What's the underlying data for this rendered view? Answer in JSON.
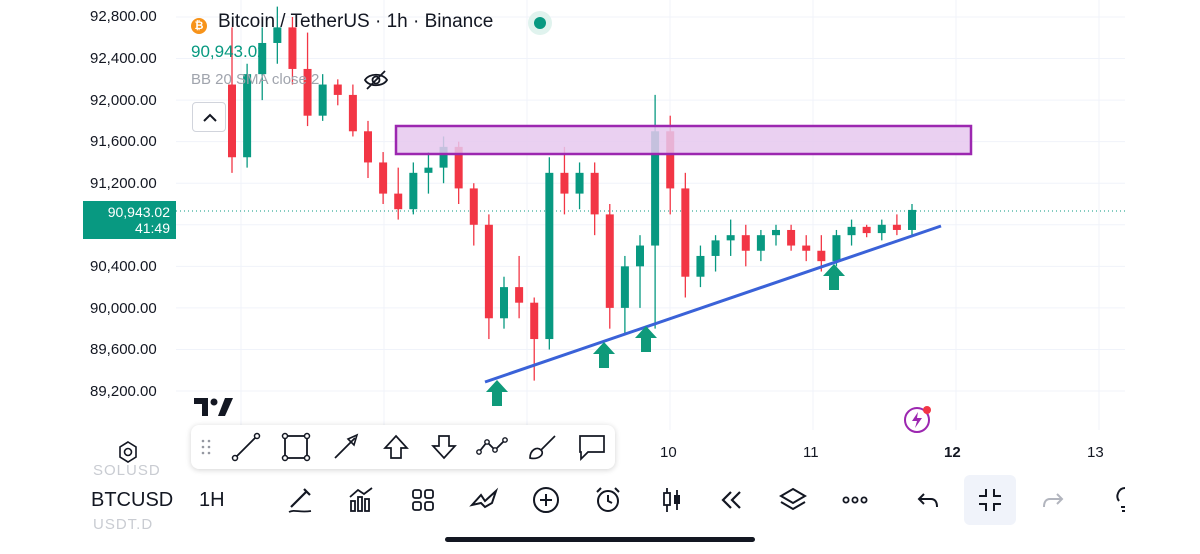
{
  "header": {
    "title": "Bitcoin / TetherUS · 1h · Binance",
    "symbol_badge": "₿",
    "last_price": "90,943.02",
    "indicator_label": "BB 20 SMA close 2"
  },
  "price_tag": {
    "price": "90,943.02",
    "countdown": "41:49"
  },
  "y_axis": {
    "ticks": [
      "92,800.00",
      "92,400.00",
      "92,000.00",
      "91,600.00",
      "91,200.00",
      "90,400.00",
      "90,000.00",
      "89,600.00",
      "89,200.00"
    ]
  },
  "x_axis": {
    "ticks": [
      {
        "label": "10",
        "bold": false
      },
      {
        "label": "11",
        "bold": false
      },
      {
        "label": "12",
        "bold": true
      },
      {
        "label": "13",
        "bold": false
      }
    ]
  },
  "colors": {
    "up": "#089981",
    "down": "#f23645",
    "zone_fill": "#e6c8ee",
    "zone_border": "#9c27b0",
    "trendline": "#3a62d8",
    "arrow": "#0f9a7a"
  },
  "drawing_toolbar": {
    "tools": [
      "trend-line-tool",
      "rectangle-tool",
      "arrow-tool",
      "arrow-mark-up-tool",
      "arrow-mark-down-tool",
      "path-tool",
      "brush-tool",
      "callout-tool"
    ]
  },
  "bottom_bar": {
    "symbol": "BTCUSD",
    "symbol_above": "SOLUSD",
    "symbol_below": "USDT.D",
    "interval": "1H",
    "tools": [
      "draw-icon",
      "indicators-icon",
      "layouts-icon",
      "templates-icon",
      "add-icon",
      "alert-icon",
      "candles-icon",
      "replay-icon",
      "layers-icon",
      "more-icon",
      "undo-icon",
      "fullscreen-exit-icon",
      "redo-icon",
      "idea-icon"
    ]
  },
  "chart_data": {
    "type": "candlestick",
    "x_ticks": [
      "10",
      "11",
      "12",
      "13"
    ],
    "y_ticks": [
      92800,
      92400,
      92000,
      91600,
      91200,
      90400,
      90000,
      89600,
      89200
    ],
    "last_price": 90943.02,
    "resistance_zone": [
      91500,
      91780
    ],
    "support_trendline": "ascending",
    "candles_ohlc_approx": [
      [
        92150,
        92700,
        91300,
        91450
      ],
      [
        91450,
        92350,
        91350,
        92250
      ],
      [
        92250,
        92700,
        92000,
        92550
      ],
      [
        92550,
        92900,
        92350,
        92700
      ],
      [
        92700,
        92800,
        92150,
        92300
      ],
      [
        92300,
        92650,
        91750,
        91850
      ],
      [
        91850,
        92250,
        91800,
        92150
      ],
      [
        92150,
        92200,
        91950,
        92050
      ],
      [
        92050,
        92150,
        91650,
        91700
      ],
      [
        91700,
        91800,
        91250,
        91400
      ],
      [
        91400,
        91500,
        91000,
        91100
      ],
      [
        91100,
        91350,
        90850,
        90950
      ],
      [
        90950,
        91400,
        90900,
        91300
      ],
      [
        91300,
        91500,
        91100,
        91350
      ],
      [
        91350,
        91650,
        91200,
        91550
      ],
      [
        91550,
        91600,
        91000,
        91150
      ],
      [
        91150,
        91200,
        90600,
        90800
      ],
      [
        90800,
        90900,
        89700,
        89900
      ],
      [
        89900,
        90300,
        89800,
        90200
      ],
      [
        90200,
        90500,
        89900,
        90050
      ],
      [
        90050,
        90100,
        89300,
        89700
      ],
      [
        89700,
        91450,
        89600,
        91300
      ],
      [
        91300,
        91550,
        90900,
        91100
      ],
      [
        91100,
        91400,
        90950,
        91300
      ],
      [
        91300,
        91400,
        90700,
        90900
      ],
      [
        90900,
        91000,
        89800,
        90000
      ],
      [
        90000,
        90500,
        89750,
        90400
      ],
      [
        90400,
        90700,
        90000,
        90600
      ],
      [
        90600,
        92050,
        89800,
        91700
      ],
      [
        91700,
        91850,
        90900,
        91150
      ],
      [
        91150,
        91300,
        90100,
        90300
      ],
      [
        90300,
        90600,
        90200,
        90500
      ],
      [
        90500,
        90700,
        90350,
        90650
      ],
      [
        90650,
        90850,
        90500,
        90700
      ],
      [
        90700,
        90800,
        90400,
        90550
      ],
      [
        90550,
        90750,
        90450,
        90700
      ],
      [
        90700,
        90800,
        90600,
        90750
      ],
      [
        90750,
        90800,
        90550,
        90600
      ],
      [
        90600,
        90700,
        90450,
        90550
      ],
      [
        90550,
        90700,
        90350,
        90450
      ],
      [
        90450,
        90750,
        90400,
        90700
      ],
      [
        90700,
        90850,
        90600,
        90780
      ],
      [
        90780,
        90800,
        90680,
        90720
      ],
      [
        90720,
        90850,
        90650,
        90800
      ],
      [
        90800,
        90900,
        90700,
        90750
      ],
      [
        90750,
        91000,
        90700,
        90943
      ]
    ]
  }
}
